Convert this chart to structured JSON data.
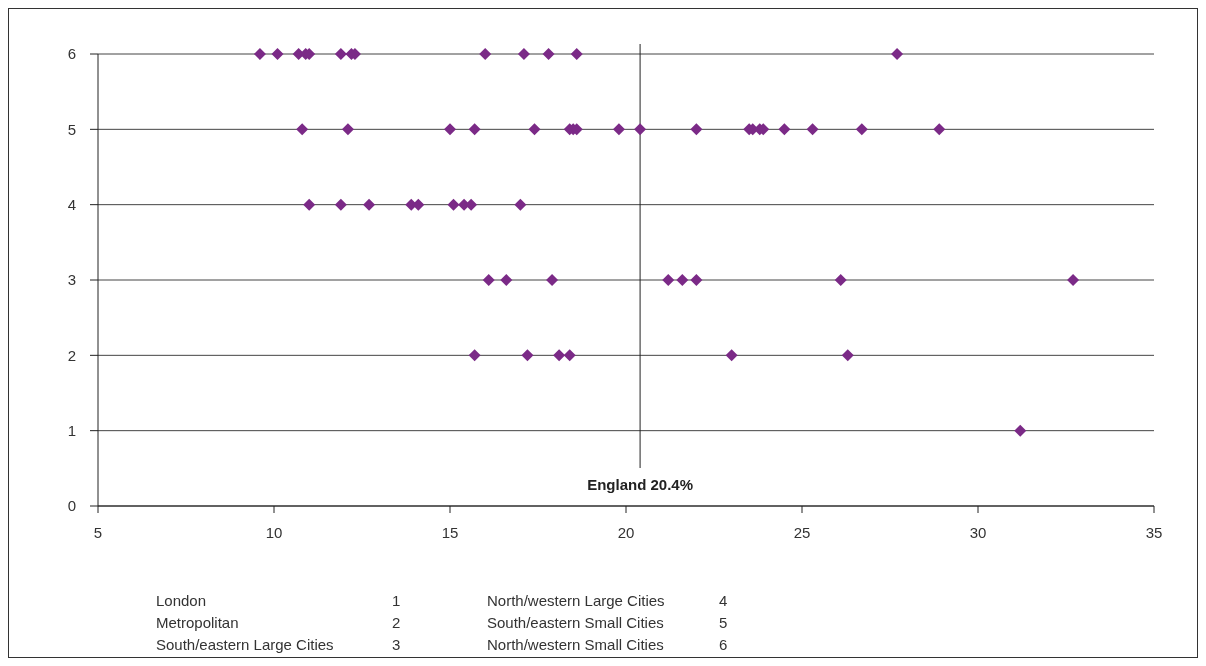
{
  "chart_data": {
    "type": "scatter",
    "marker": "diamond",
    "grid": "y",
    "xlim": [
      5,
      35
    ],
    "xticks": [
      5,
      10,
      15,
      20,
      25,
      30,
      35
    ],
    "ylim": [
      0,
      6
    ],
    "yticks": [
      0,
      1,
      2,
      3,
      4,
      5,
      6
    ],
    "series": [
      {
        "color": "#7b2a87",
        "x": [
          9.6,
          10.1,
          10.7,
          10.9,
          11.0,
          11.9,
          12.2,
          12.3,
          16.0,
          17.1,
          17.8,
          18.6,
          27.7,
          10.8,
          12.1,
          15.0,
          15.7,
          17.4,
          18.4,
          18.5,
          18.6,
          19.8,
          20.4,
          22.0,
          23.5,
          23.6,
          23.8,
          23.9,
          24.5,
          25.3,
          26.7,
          28.9,
          11.0,
          11.9,
          12.7,
          13.9,
          14.1,
          15.1,
          15.4,
          15.6,
          17.0,
          16.1,
          16.6,
          17.9,
          21.2,
          21.6,
          22.0,
          26.1,
          32.7,
          15.7,
          17.2,
          18.1,
          18.4,
          23.0,
          26.3,
          31.2
        ],
        "values": [
          6,
          6,
          6,
          6,
          6,
          6,
          6,
          6,
          6,
          6,
          6,
          6,
          6,
          5,
          5,
          5,
          5,
          5,
          5,
          5,
          5,
          5,
          5,
          5,
          5,
          5,
          5,
          5,
          5,
          5,
          5,
          5,
          4,
          4,
          4,
          4,
          4,
          4,
          4,
          4,
          4,
          3,
          3,
          3,
          3,
          3,
          3,
          3,
          3,
          2,
          2,
          2,
          2,
          2,
          2,
          1
        ]
      }
    ],
    "ref_lines": [
      {
        "axis": "x",
        "value": 20.4,
        "label": "England 20.4%",
        "color": "#222222"
      }
    ],
    "annotations": [
      "London",
      "1",
      "Metropolitan",
      "2",
      "South/eastern Large Cities",
      "3",
      "North/western Large Cities",
      "4",
      "South/eastern Small Cities",
      "5",
      "North/western Small Cities",
      "6"
    ]
  }
}
